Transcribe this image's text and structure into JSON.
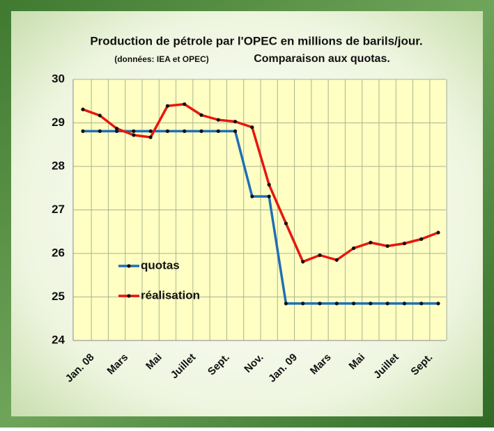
{
  "chart_data": {
    "type": "line",
    "title": "Production de pétrole par l'OPEC en millions de barils/jour.",
    "note": "(données: IEA et OPEC)",
    "subtitle": "Comparaison aux quotas.",
    "categories": [
      "Jan. 08",
      null,
      "Mars",
      null,
      "Mai",
      null,
      "Juillet",
      null,
      "Sept.",
      null,
      "Nov.",
      null,
      "Jan. 09",
      null,
      "Mars",
      null,
      "Mai",
      null,
      "Juillet",
      null,
      "Sept.",
      null
    ],
    "series": [
      {
        "name": "quotas",
        "color": "#1f6fb5",
        "values": [
          28.81,
          28.81,
          28.81,
          28.81,
          28.81,
          28.81,
          28.81,
          28.81,
          28.81,
          28.81,
          27.31,
          27.31,
          24.85,
          24.85,
          24.85,
          24.85,
          24.85,
          24.85,
          24.85,
          24.85,
          24.85,
          24.85
        ]
      },
      {
        "name": "réalisation",
        "color": "#e8160e",
        "values": [
          29.31,
          29.17,
          28.87,
          28.72,
          28.67,
          29.39,
          29.43,
          29.18,
          29.07,
          29.03,
          28.9,
          27.58,
          26.69,
          25.81,
          25.96,
          25.85,
          26.12,
          26.25,
          26.17,
          26.23,
          26.33,
          26.48
        ]
      }
    ],
    "ylim": [
      24,
      30
    ],
    "yticks": [
      24,
      25,
      26,
      27,
      28,
      29,
      30
    ],
    "grid": true
  }
}
